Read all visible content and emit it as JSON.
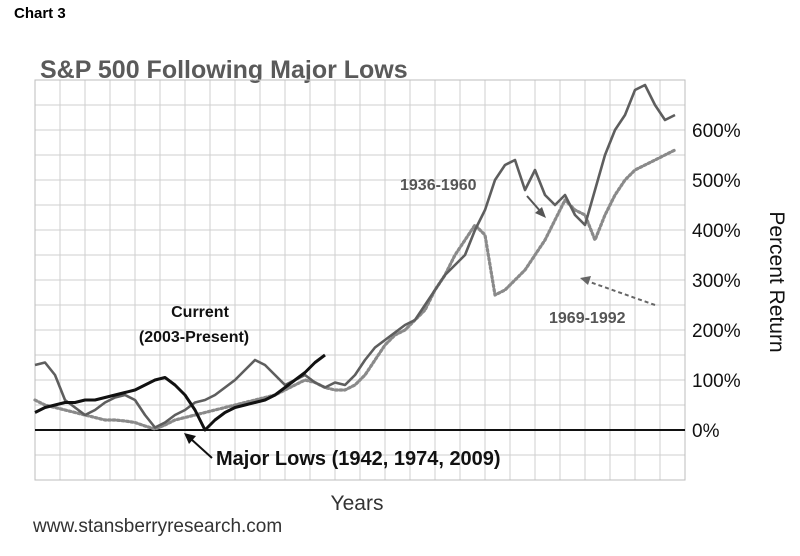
{
  "chart_label": "Chart 3",
  "website": "www.stansberryresearch.com",
  "colors": {
    "background": "#ffffff",
    "title": "#5a5a5a",
    "grid": "#cfcfcf",
    "series_1936": "#5e5e5e",
    "series_1969": "#8a8a8a",
    "series_current": "#111111",
    "text_dark": "#111111",
    "annotation_gray": "#555555"
  },
  "annotations": {
    "current_line1": "Current",
    "current_line2": "(2003-Present)",
    "major_lows": "Major Lows (1942, 1974, 2009)",
    "label_1936": "1936-1960",
    "label_1969": "1969-1992"
  },
  "chart_data": {
    "type": "line",
    "title": "S&P 500 Following Major Lows",
    "xlabel": "Years",
    "ylabel": "Percent Return",
    "y_axis_side": "right",
    "ylim": [
      -100,
      700
    ],
    "yticks": [
      0,
      100,
      200,
      300,
      400,
      500,
      600
    ],
    "ytick_labels": [
      "0%",
      "100%",
      "200%",
      "300%",
      "400%",
      "500%",
      "600%"
    ],
    "xlim": [
      0,
      130
    ],
    "grid": true,
    "legend": "none",
    "series": [
      {
        "name": "1936-1960",
        "style": "solid",
        "x": [
          0,
          2,
          4,
          6,
          8,
          10,
          12,
          14,
          16,
          18,
          20,
          22,
          24,
          26,
          28,
          30,
          32,
          34,
          36,
          38,
          40,
          42,
          44,
          46,
          48,
          50,
          52,
          54,
          56,
          58,
          60,
          62,
          64,
          66,
          68,
          70,
          72,
          74,
          76,
          78,
          80,
          82,
          84,
          86,
          88,
          90,
          92,
          94,
          96,
          98,
          100,
          102,
          104,
          106,
          108,
          110,
          112,
          114,
          116,
          118,
          120,
          122,
          124,
          126,
          128
        ],
        "values": [
          130,
          135,
          110,
          60,
          45,
          30,
          40,
          55,
          65,
          70,
          60,
          30,
          5,
          15,
          30,
          40,
          55,
          60,
          70,
          85,
          100,
          120,
          140,
          130,
          110,
          90,
          100,
          110,
          95,
          85,
          95,
          90,
          110,
          140,
          165,
          180,
          195,
          210,
          220,
          250,
          280,
          310,
          330,
          350,
          400,
          440,
          500,
          530,
          540,
          480,
          520,
          470,
          450,
          470,
          430,
          410,
          480,
          550,
          600,
          630,
          680,
          690,
          650,
          620,
          630
        ]
      },
      {
        "name": "1969-1992",
        "style": "dotted",
        "x": [
          0,
          2,
          4,
          6,
          8,
          10,
          12,
          14,
          16,
          18,
          20,
          22,
          24,
          26,
          28,
          30,
          32,
          34,
          36,
          38,
          40,
          42,
          44,
          46,
          48,
          50,
          52,
          54,
          56,
          58,
          60,
          62,
          64,
          66,
          68,
          70,
          72,
          74,
          76,
          78,
          80,
          82,
          84,
          86,
          88,
          90,
          92,
          94,
          96,
          98,
          100,
          102,
          104,
          106,
          108,
          110,
          112,
          114,
          116,
          118,
          120,
          122,
          124,
          126,
          128
        ],
        "values": [
          60,
          50,
          45,
          40,
          35,
          30,
          25,
          20,
          20,
          18,
          15,
          8,
          2,
          10,
          20,
          25,
          30,
          35,
          40,
          45,
          50,
          55,
          60,
          65,
          70,
          80,
          90,
          100,
          95,
          85,
          80,
          80,
          90,
          110,
          140,
          170,
          190,
          200,
          220,
          240,
          280,
          310,
          350,
          380,
          410,
          390,
          270,
          280,
          300,
          320,
          350,
          380,
          420,
          460,
          440,
          430,
          380,
          430,
          470,
          500,
          520,
          530,
          540,
          550,
          560
        ]
      },
      {
        "name": "",
        "style": "solid-bold",
        "x": [
          0,
          2,
          4,
          6,
          8,
          10,
          12,
          14,
          16,
          18,
          20,
          22,
          24,
          26,
          28,
          30,
          32,
          34,
          36,
          38,
          40,
          42,
          44,
          46,
          48,
          50,
          52,
          54,
          56,
          58
        ],
        "values": [
          35,
          45,
          50,
          55,
          55,
          60,
          60,
          65,
          70,
          75,
          80,
          90,
          100,
          105,
          90,
          70,
          40,
          0,
          20,
          35,
          45,
          50,
          55,
          60,
          70,
          85,
          100,
          115,
          135,
          150
        ]
      }
    ]
  }
}
